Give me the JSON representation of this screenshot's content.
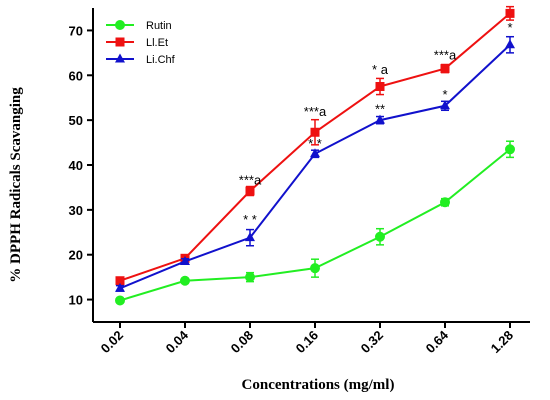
{
  "chart_data": {
    "type": "line",
    "title": "",
    "xlabel": "Concentrations (mg/ml)",
    "ylabel": "% DPPH Radicals Scavanging",
    "categories": [
      "0.02",
      "0.04",
      "0.08",
      "0.16",
      "0.32",
      "0.64",
      "1.28"
    ],
    "ylim": [
      5,
      75
    ],
    "yticks": [
      10,
      20,
      30,
      40,
      50,
      60,
      70
    ],
    "legend_position": "top-left",
    "series": [
      {
        "name": "Rutin",
        "color": "#22ee22",
        "marker": "circle",
        "values": [
          9.8,
          14.2,
          15.0,
          17.0,
          24.0,
          31.7,
          43.5
        ],
        "errors": [
          0.5,
          0.5,
          1.0,
          2.0,
          1.8,
          0.8,
          1.8
        ]
      },
      {
        "name": "Ll.Et",
        "color": "#ee1111",
        "marker": "square",
        "values": [
          14.2,
          19.2,
          34.2,
          47.3,
          57.5,
          61.5,
          73.8
        ],
        "errors": [
          0.6,
          0.6,
          1.0,
          2.8,
          1.8,
          0.9,
          1.5
        ]
      },
      {
        "name": "Li.Chf",
        "color": "#1111cc",
        "marker": "triangle",
        "values": [
          12.5,
          18.5,
          23.8,
          42.5,
          50.0,
          53.2,
          66.8
        ],
        "errors": [
          0.6,
          0.6,
          1.8,
          0.8,
          0.8,
          1.0,
          1.8
        ]
      }
    ],
    "annotations": [
      {
        "category": "0.08",
        "y": 26.8,
        "text": "* *"
      },
      {
        "category": "0.08",
        "y": 35.7,
        "text": "***a"
      },
      {
        "category": "0.16",
        "y": 43.8,
        "text": "* *"
      },
      {
        "category": "0.16",
        "y": 50.9,
        "text": "***a"
      },
      {
        "category": "0.32",
        "y": 51.5,
        "text": "**"
      },
      {
        "category": "0.32",
        "y": 60.3,
        "text": "* a"
      },
      {
        "category": "0.64",
        "y": 54.7,
        "text": "*"
      },
      {
        "category": "0.64",
        "y": 63.5,
        "text": "***a"
      },
      {
        "category": "1.28",
        "y": 69.6,
        "text": "*"
      }
    ]
  }
}
